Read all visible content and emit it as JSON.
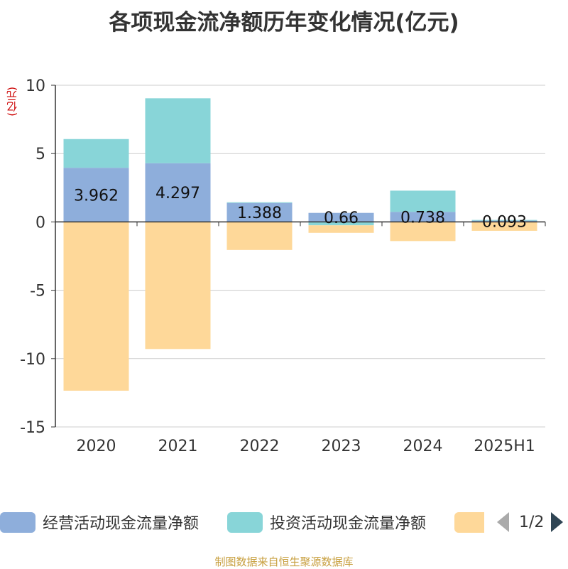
{
  "chart_data": {
    "type": "bar",
    "stacked": true,
    "title": "各项现金流净额历年变化情况(亿元)",
    "ylabel": "(亿元)",
    "categories": [
      "2020",
      "2021",
      "2022",
      "2023",
      "2024",
      "2025H1"
    ],
    "ylim": [
      -15,
      10
    ],
    "yticks": [
      10,
      5,
      0,
      -5,
      -10,
      -15
    ],
    "grid": true,
    "series": [
      {
        "name": "经营活动现金流量净额",
        "color": "#8eaedb",
        "values": [
          3.962,
          4.297,
          1.388,
          0.66,
          0.738,
          0.093
        ],
        "labels": [
          "3.962",
          "4.297",
          "1.388",
          "0.66",
          "0.738",
          "0.093"
        ]
      },
      {
        "name": "投资活动现金流量净额",
        "color": "#88d5d8",
        "values": [
          2.1,
          4.75,
          0.05,
          -0.25,
          1.55,
          0.05
        ]
      },
      {
        "name": "",
        "color": "#fed899",
        "values": [
          -12.35,
          -9.3,
          -2.05,
          -0.55,
          -1.4,
          -0.65
        ]
      }
    ]
  },
  "legend": {
    "page": "1/2"
  },
  "footer": "制图数据来自恒生聚源数据库"
}
